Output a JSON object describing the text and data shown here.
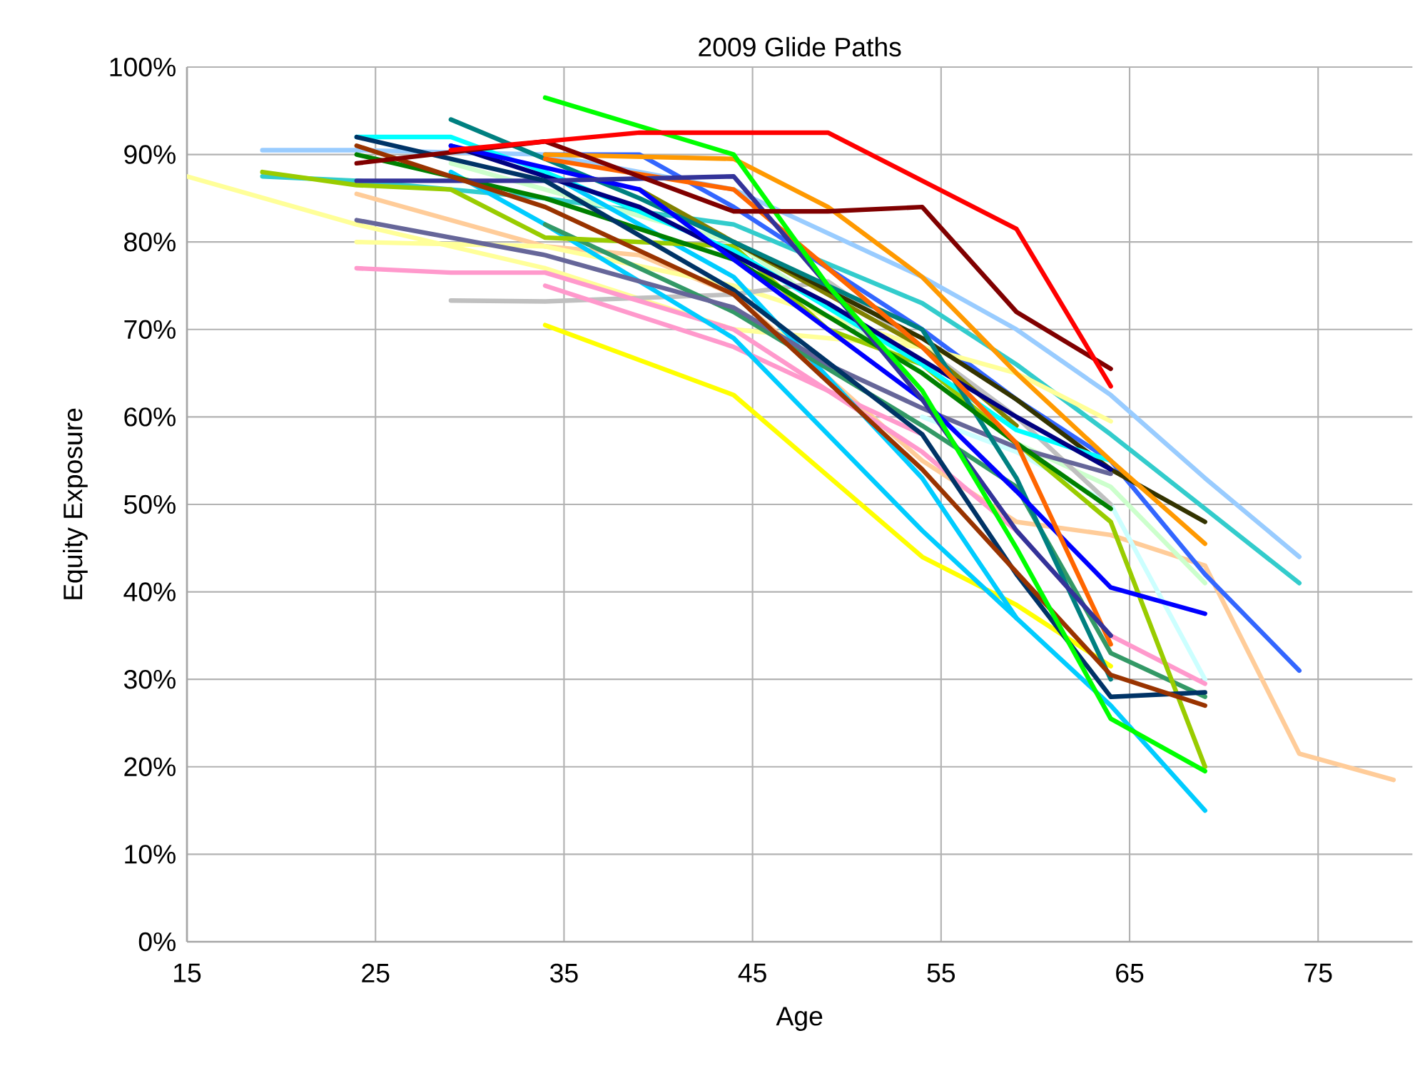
{
  "chart_data": {
    "type": "line",
    "title": "2009 Glide Paths",
    "xlabel": "Age",
    "ylabel": "Equity Exposure",
    "xlim": [
      15,
      80
    ],
    "xticks": [
      15,
      25,
      35,
      45,
      55,
      65,
      75
    ],
    "ylim": [
      0,
      100
    ],
    "yticks": [
      {
        "value": 0,
        "label": "0%"
      },
      {
        "value": 10,
        "label": "10%"
      },
      {
        "value": 20,
        "label": "20%"
      },
      {
        "value": 30,
        "label": "30%"
      },
      {
        "value": 40,
        "label": "40%"
      },
      {
        "value": 50,
        "label": "50%"
      },
      {
        "value": 60,
        "label": "60%"
      },
      {
        "value": 70,
        "label": "70%"
      },
      {
        "value": 80,
        "label": "80%"
      },
      {
        "value": 90,
        "label": "90%"
      },
      {
        "value": 100,
        "label": "100%"
      }
    ],
    "grid": true,
    "series": [
      {
        "color": "#ffcc99",
        "x": [
          24,
          34,
          39,
          44,
          54,
          59,
          64,
          69,
          74,
          79
        ],
        "values": [
          85.5,
          79.5,
          78.5,
          74,
          55,
          48,
          46.5,
          43,
          21.5,
          18.5
        ]
      },
      {
        "color": "#99ccff",
        "x": [
          19,
          24,
          34,
          44,
          54,
          59,
          64,
          69,
          74
        ],
        "values": [
          90.5,
          90.5,
          90,
          86,
          76,
          70,
          62.5,
          53,
          44
        ]
      },
      {
        "color": "#33cccc",
        "x": [
          19,
          24,
          34,
          44,
          54,
          59,
          64,
          69,
          74
        ],
        "values": [
          87.5,
          87,
          85,
          82,
          73,
          66,
          58,
          49.5,
          41
        ]
      },
      {
        "color": "#3366ff",
        "x": [
          34,
          39,
          44,
          54,
          59,
          64,
          69,
          74
        ],
        "values": [
          90,
          90,
          84,
          70,
          62,
          55,
          42,
          31
        ]
      },
      {
        "color": "#ffff99",
        "x": [
          15,
          24,
          34,
          44,
          54,
          59,
          64
        ],
        "values": [
          87.5,
          82,
          77,
          70,
          68,
          65,
          59.5
        ]
      },
      {
        "color": "#ffff99",
        "x": [
          24,
          34,
          44,
          54
        ],
        "values": [
          80,
          79.5,
          75,
          68
        ]
      },
      {
        "color": "#ccffcc",
        "x": [
          29,
          44,
          54,
          59,
          64,
          69
        ],
        "values": [
          89,
          80,
          65,
          57,
          52,
          41
        ]
      },
      {
        "color": "#ccffff",
        "x": [
          54,
          59,
          64,
          69
        ],
        "values": [
          60,
          56,
          50,
          30
        ]
      },
      {
        "color": "#c0c0c0",
        "x": [
          29,
          34,
          44,
          49,
          54,
          59,
          64
        ],
        "values": [
          73.3,
          73.2,
          74,
          75.5,
          68,
          60,
          50
        ]
      },
      {
        "color": "#ff99cc",
        "x": [
          24,
          29,
          34,
          44,
          54,
          59,
          64,
          69
        ],
        "values": [
          77,
          76.5,
          76.5,
          70,
          56,
          47,
          35,
          29.5
        ]
      },
      {
        "color": "#ff99cc",
        "x": [
          34,
          44,
          54
        ],
        "values": [
          75,
          68,
          58
        ]
      },
      {
        "color": "#ffff00",
        "x": [
          34,
          44,
          54,
          59,
          64
        ],
        "values": [
          70.5,
          62.5,
          44,
          38.5,
          31.5
        ]
      },
      {
        "color": "#00ccff",
        "x": [
          29,
          34,
          44,
          54,
          64,
          69
        ],
        "values": [
          88,
          82,
          69,
          47,
          27,
          15
        ]
      },
      {
        "color": "#00ccff",
        "x": [
          34,
          44,
          54,
          59
        ],
        "values": [
          88,
          76,
          53,
          37
        ]
      },
      {
        "color": "#339966",
        "x": [
          34,
          44,
          54,
          59,
          64,
          69
        ],
        "values": [
          82,
          72,
          59,
          52,
          33,
          28
        ]
      },
      {
        "color": "#99cc00",
        "x": [
          19,
          24,
          29,
          34,
          44,
          49,
          54,
          59,
          64,
          69
        ],
        "values": [
          88,
          86.5,
          86,
          80.5,
          79.5,
          70,
          66,
          57,
          48,
          20
        ]
      },
      {
        "color": "#808000",
        "x": [
          39,
          44,
          54,
          59
        ],
        "values": [
          86,
          80,
          68,
          59
        ]
      },
      {
        "color": "#333300",
        "x": [
          44,
          54,
          59,
          64,
          69
        ],
        "values": [
          80,
          69,
          62,
          54,
          48
        ]
      },
      {
        "color": "#666699",
        "x": [
          24,
          34,
          44,
          49,
          54,
          59,
          64
        ],
        "values": [
          82.5,
          78.5,
          72.5,
          66,
          61,
          56.5,
          53.5
        ]
      },
      {
        "color": "#00ffff",
        "x": [
          24,
          29,
          34,
          44,
          54,
          59,
          64
        ],
        "values": [
          92,
          92,
          88,
          79,
          66,
          58.5,
          55
        ]
      },
      {
        "color": "#008080",
        "x": [
          29,
          39,
          44,
          54,
          59,
          64
        ],
        "values": [
          94,
          85,
          80,
          70,
          53,
          30
        ]
      },
      {
        "color": "#008000",
        "x": [
          24,
          34,
          44,
          54,
          59,
          64
        ],
        "values": [
          90,
          85,
          78,
          65,
          57,
          49.5
        ]
      },
      {
        "color": "#000080",
        "x": [
          29,
          39,
          49,
          59,
          64
        ],
        "values": [
          91,
          84,
          73,
          60,
          54
        ]
      },
      {
        "color": "#0000ff",
        "x": [
          29,
          39,
          44,
          54,
          59,
          64,
          69
        ],
        "values": [
          91,
          86,
          78,
          62,
          51.5,
          40.5,
          37.5
        ]
      },
      {
        "color": "#ff6600",
        "x": [
          34,
          44,
          54,
          59,
          64
        ],
        "values": [
          89.5,
          86,
          68,
          57,
          34
        ]
      },
      {
        "color": "#333399",
        "x": [
          24,
          34,
          44,
          49,
          54,
          59,
          64
        ],
        "values": [
          87,
          87,
          87.5,
          75,
          62,
          47,
          35
        ]
      },
      {
        "color": "#003366",
        "x": [
          24,
          34,
          44,
          54,
          59,
          64,
          69
        ],
        "values": [
          92,
          87,
          74.5,
          58,
          42,
          28,
          28.5
        ]
      },
      {
        "color": "#993300",
        "x": [
          24,
          34,
          44,
          54,
          64,
          69
        ],
        "values": [
          91,
          84,
          74,
          54,
          30.5,
          27
        ]
      },
      {
        "color": "#ff9900",
        "x": [
          34,
          44,
          49,
          54,
          59,
          64,
          69
        ],
        "values": [
          90,
          89.5,
          84,
          76,
          65,
          55,
          45.5
        ]
      },
      {
        "color": "#00ff00",
        "x": [
          34,
          44,
          49,
          54,
          59,
          64,
          69
        ],
        "values": [
          96.5,
          90,
          75,
          63,
          45,
          25.5,
          19.5
        ]
      },
      {
        "color": "#800000",
        "x": [
          24,
          34,
          44,
          49,
          54,
          59,
          64
        ],
        "values": [
          89,
          91.5,
          83.5,
          83.5,
          84,
          72,
          65.5
        ]
      },
      {
        "color": "#ff0000",
        "x": [
          29,
          39,
          49,
          59,
          64
        ],
        "values": [
          90.5,
          92.5,
          92.5,
          81.5,
          63.5
        ]
      }
    ]
  }
}
